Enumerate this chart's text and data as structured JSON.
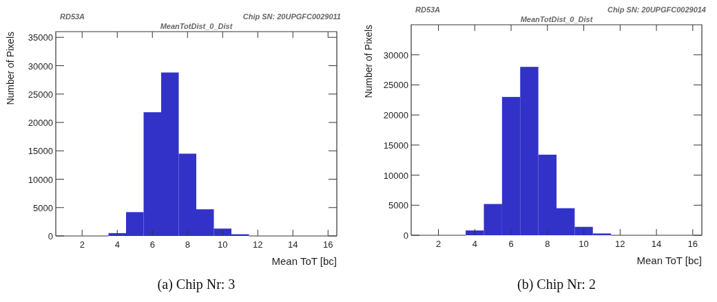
{
  "chart_data": [
    {
      "type": "histogram",
      "title": "MeanTotDist_0_Dist",
      "xlabel": "Mean ToT [bc]",
      "ylabel": "Number of Pixels",
      "annotations": [
        "RD53A",
        "Chip SN: 20UPGFC0029011",
        "(a) Chip Nr: 3"
      ],
      "bins": [
        3.5,
        4.5,
        5.5,
        6.5,
        7.5,
        8.5,
        9.5,
        10.5,
        11.5
      ],
      "values": [
        500,
        4200,
        21800,
        28800,
        14500,
        4700,
        1300,
        300
      ],
      "color": "#3232c8",
      "xlim": [
        0.5,
        16.5
      ],
      "xticks": [
        2,
        4,
        6,
        8,
        10,
        12,
        14,
        16
      ],
      "ylim": [
        0,
        36000
      ],
      "yticks": [
        0,
        5000,
        10000,
        15000,
        20000,
        25000,
        30000,
        35000
      ],
      "grid": false
    },
    {
      "type": "histogram",
      "title": "MeanTotDist_0_Dist",
      "xlabel": "Mean ToT [bc]",
      "ylabel": "Number of Pixels",
      "annotations": [
        "RD53A",
        "Chip SN: 20UPGFC0029014",
        "(b) Chip Nr: 2"
      ],
      "bins": [
        3.5,
        4.5,
        5.5,
        6.5,
        7.5,
        8.5,
        9.5,
        10.5,
        11.5
      ],
      "values": [
        800,
        5200,
        23000,
        28000,
        13400,
        4500,
        1400,
        300
      ],
      "color": "#3232c8",
      "xlim": [
        0.5,
        16.5
      ],
      "xticks": [
        2,
        4,
        6,
        8,
        10,
        12,
        14,
        16
      ],
      "ylim": [
        0,
        35000
      ],
      "yticks": [
        0,
        5000,
        10000,
        15000,
        20000,
        25000,
        30000
      ],
      "grid": false
    }
  ]
}
